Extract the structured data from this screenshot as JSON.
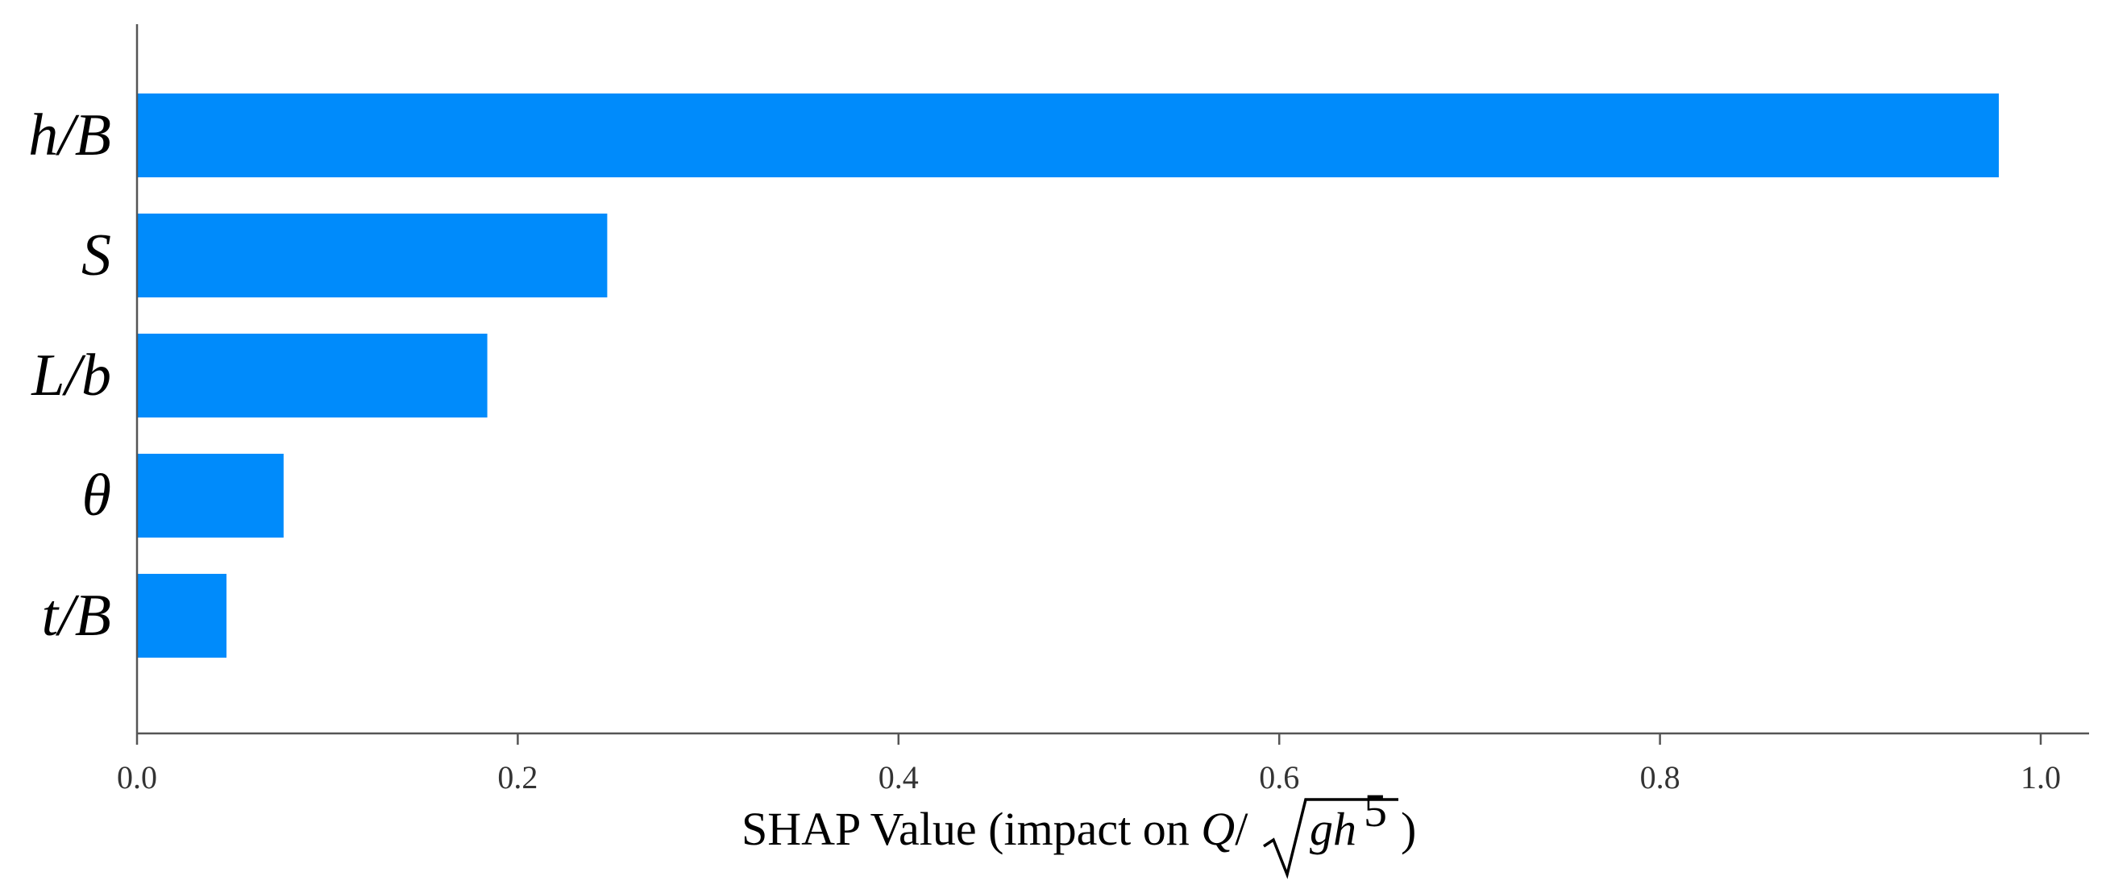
{
  "chart_data": {
    "type": "bar",
    "orientation": "horizontal",
    "categories": [
      "h/B",
      "S",
      "L/b",
      "θ",
      "t/B"
    ],
    "values": [
      0.978,
      0.247,
      0.184,
      0.077,
      0.047
    ],
    "xlim": [
      0.0,
      1.02
    ],
    "xticks": [
      "0.0",
      "0.2",
      "0.4",
      "0.6",
      "0.8",
      "1.0"
    ],
    "xlabel": {
      "text_before": "SHAP Value (impact on ",
      "math_q": "Q",
      "math_slash": "/",
      "math_gh": "gh",
      "math_exp": "5",
      "text_after": " )"
    },
    "bar_color": "#008bfb",
    "grid": false
  }
}
